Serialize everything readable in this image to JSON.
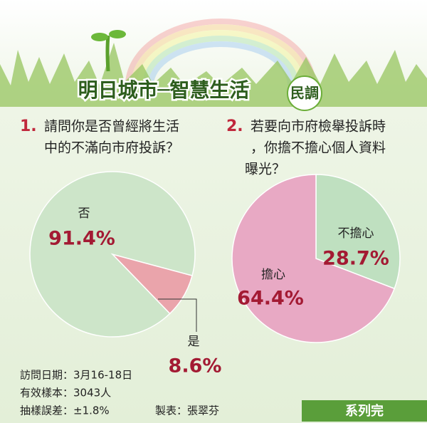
{
  "header": {
    "title": "明日城市─智慧生活",
    "badge": "民調"
  },
  "chart_data": [
    {
      "type": "pie",
      "number": "1.",
      "title": [
        "請問你是否曾經將生活",
        "中的不滿向市府投訴？"
      ],
      "categories": [
        "否",
        "是"
      ],
      "values": [
        91.4,
        8.6
      ],
      "value_labels": [
        "91.4%",
        "8.6%"
      ],
      "colors": [
        "#cde5c9",
        "#eaa4ab"
      ]
    },
    {
      "type": "pie",
      "number": "2.",
      "title": [
        "若要向市府檢舉投訴時",
        "，你擔不擔心個人資料",
        "曝光？"
      ],
      "categories": [
        "不擔心",
        "擔心"
      ],
      "values": [
        28.7,
        64.4
      ],
      "value_labels": [
        "28.7%",
        "64.4%"
      ],
      "colors": [
        "#bfe0c0",
        "#e8a9c4"
      ]
    }
  ],
  "footer": {
    "lines": [
      "訪問日期：3月16-18日",
      "有效樣本：3043人",
      "抽樣誤差：±1.8%"
    ],
    "credit": "製表：張翠芬",
    "series_end": "系列完"
  }
}
